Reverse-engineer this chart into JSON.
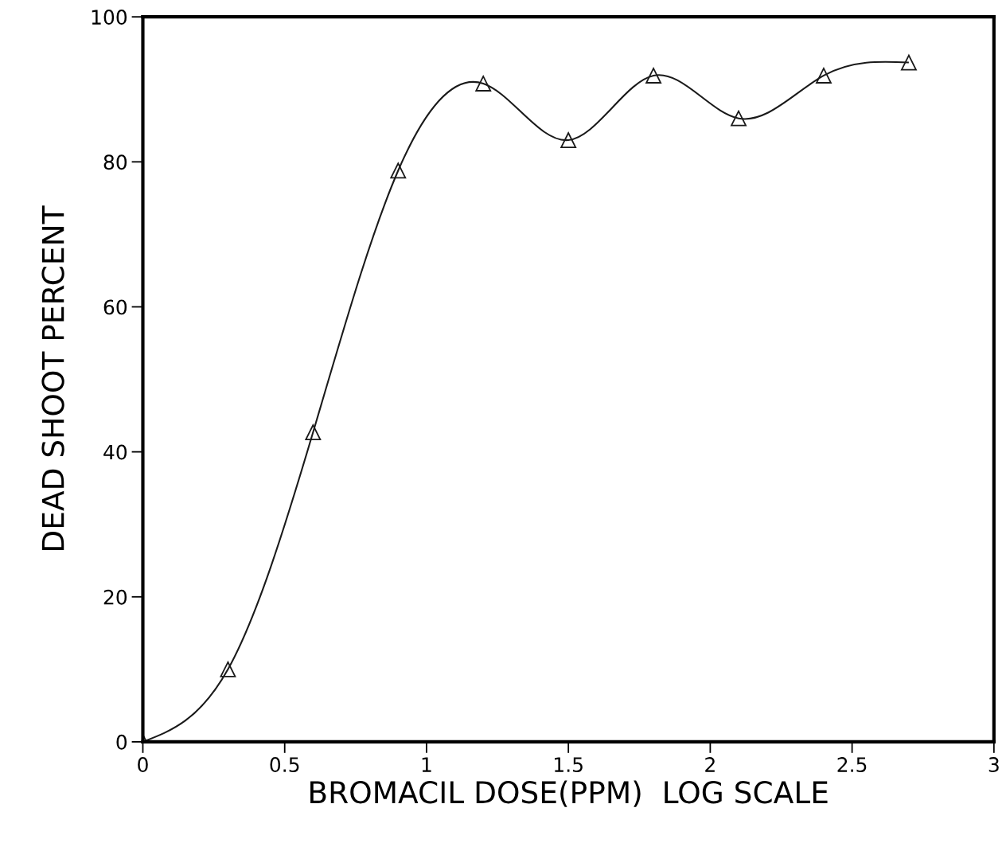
{
  "chart_data": {
    "type": "line",
    "xlabel": "BROMACIL DOSE(PPM)  LOG SCALE",
    "ylabel": "DEAD SHOOT PERCENT",
    "x": [
      0,
      0.3,
      0.6,
      0.9,
      1.2,
      1.5,
      1.8,
      2.1,
      2.4,
      2.7
    ],
    "series": [
      {
        "color": "#1a1a1a",
        "values": [
          0,
          10,
          42.7,
          78.8,
          90.8,
          83,
          91.9,
          86,
          91.9,
          93.7
        ]
      }
    ],
    "xlim": [
      0,
      3
    ],
    "xticks": [
      0,
      0.5,
      1,
      1.5,
      2,
      2.5,
      3
    ],
    "ylim": [
      0,
      100
    ],
    "yticks": [
      0,
      20,
      40,
      60,
      80,
      100
    ],
    "grid": false,
    "marker": "triangle",
    "line_style": "solid"
  }
}
